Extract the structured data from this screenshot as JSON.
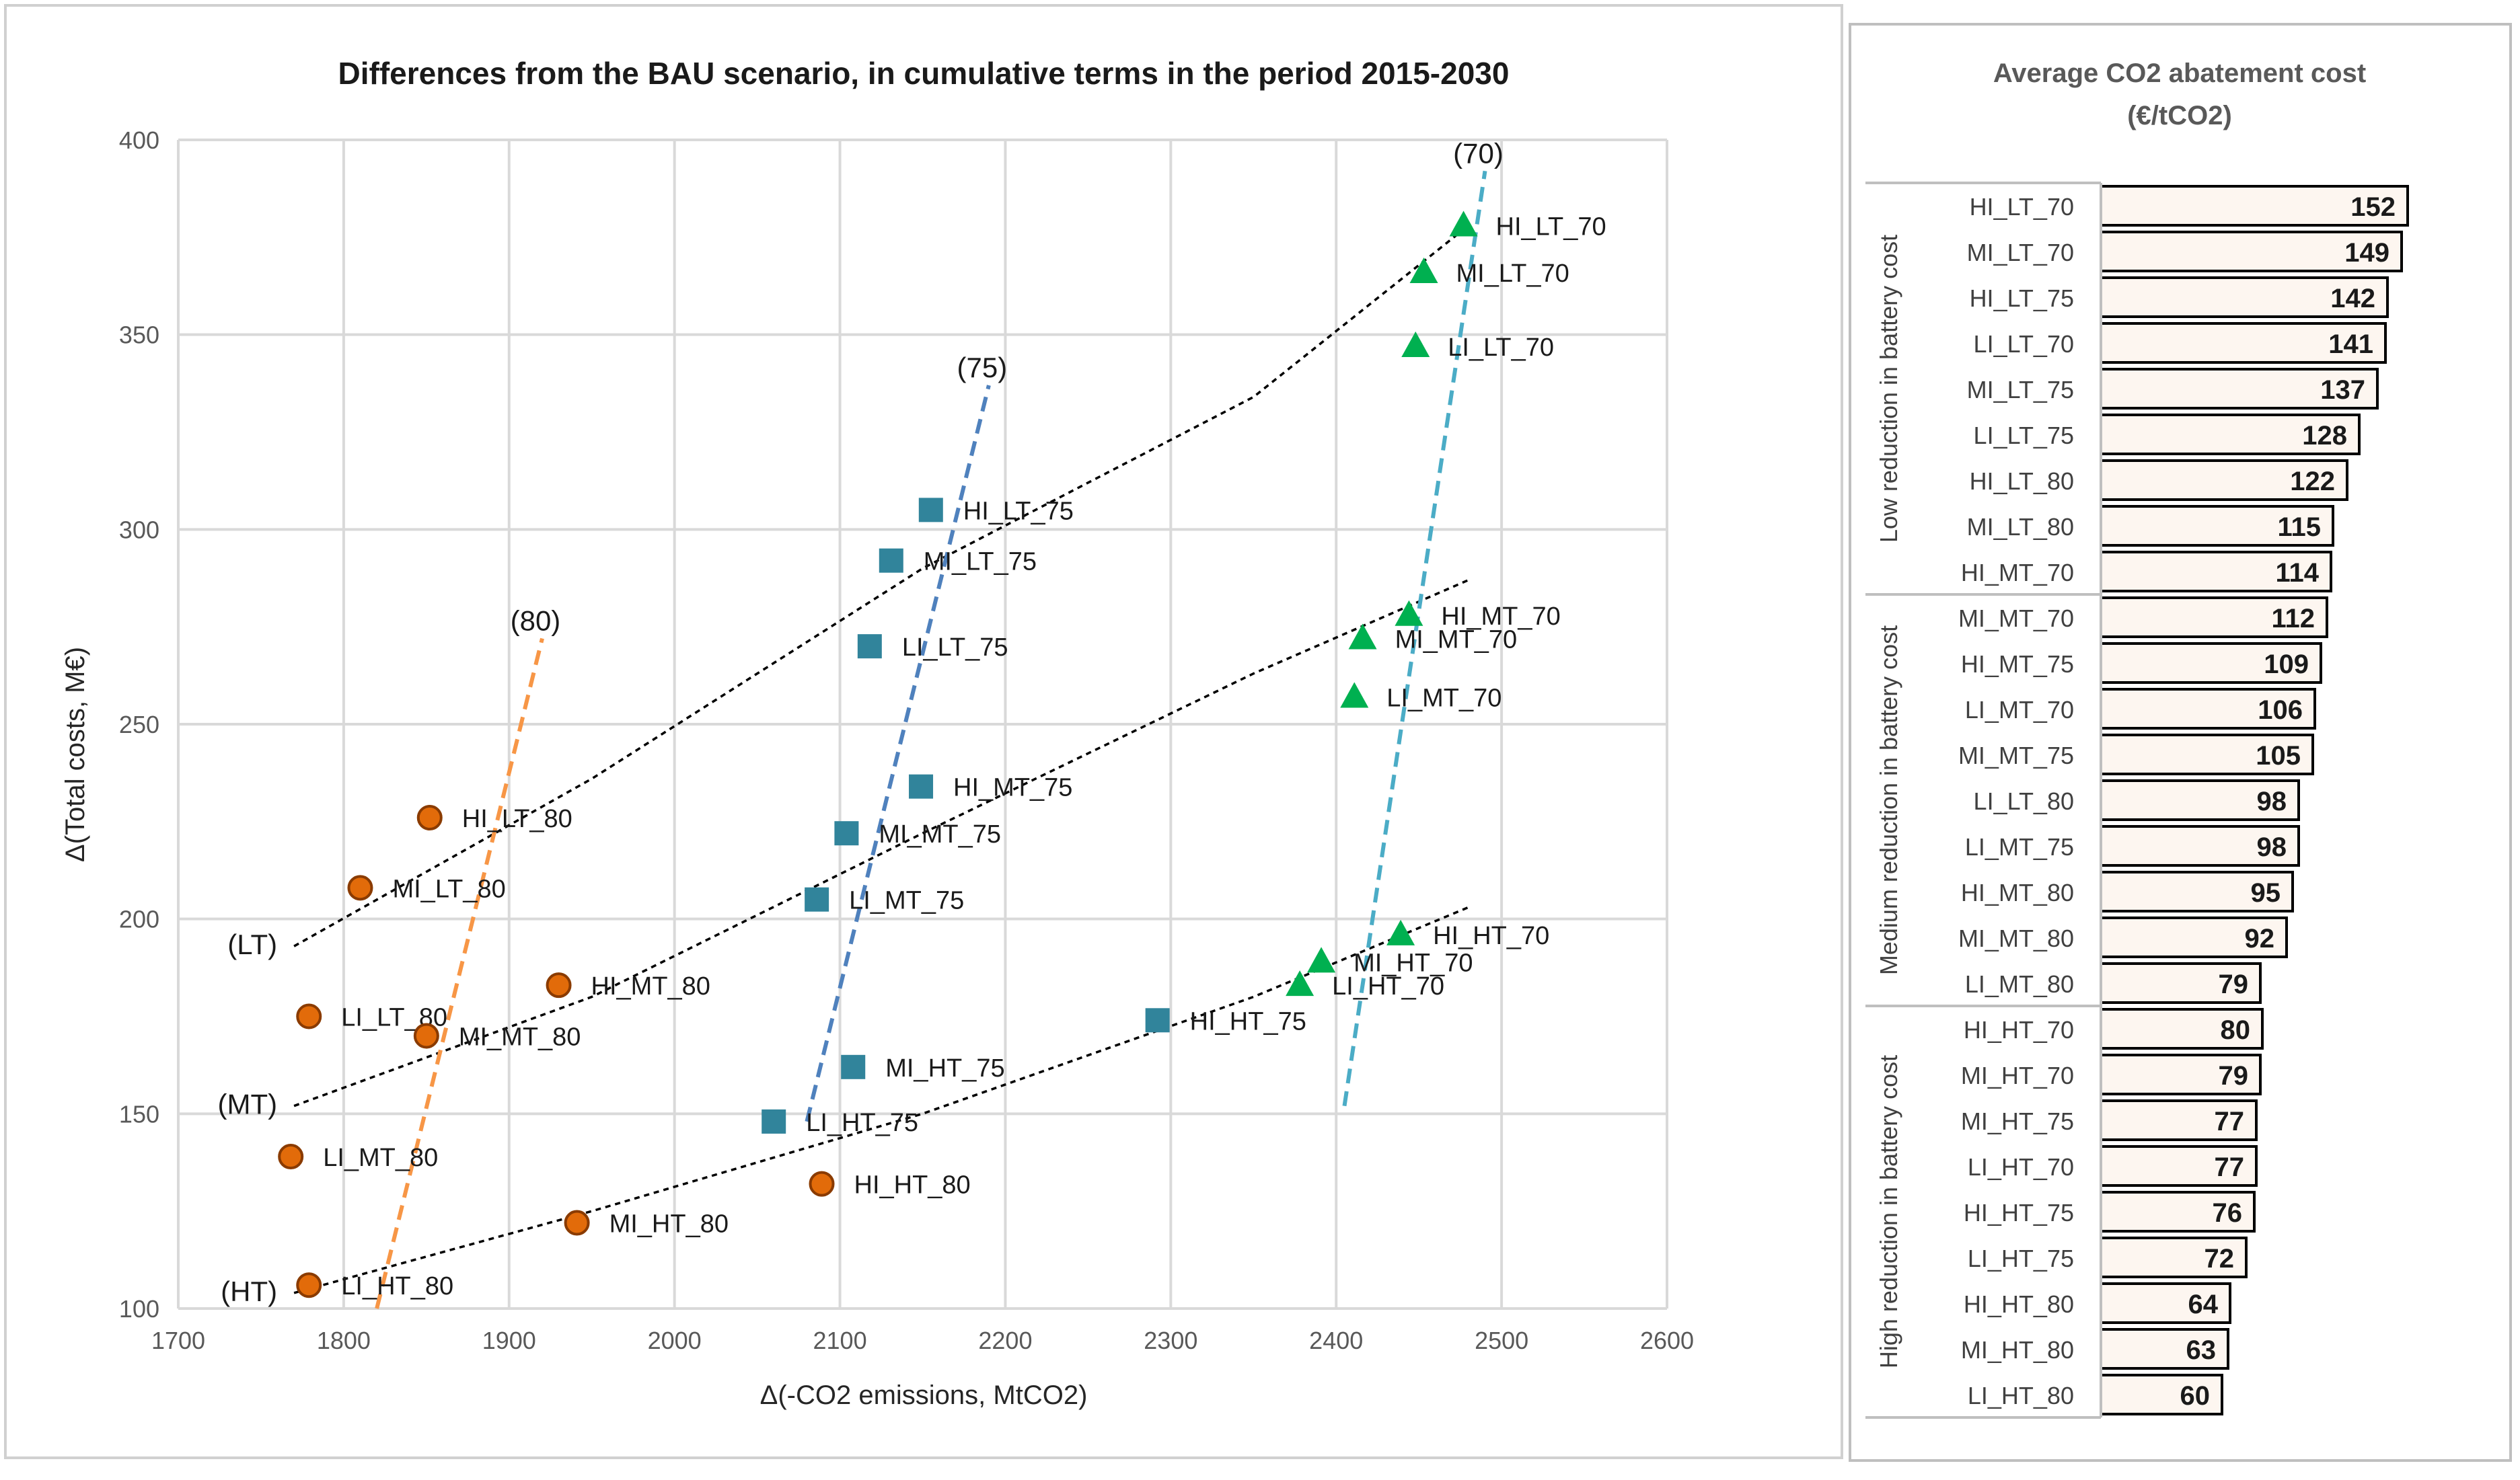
{
  "chart_data": [
    {
      "type": "scatter",
      "title": "Differences from the BAU scenario, in cumulative terms in the period 2015-2030",
      "xlabel": "Δ(-CO2 emissions, MtCO2)",
      "ylabel": "Δ(Total costs, M€)",
      "xlim": [
        1700,
        2600
      ],
      "ylim": [
        100,
        400
      ],
      "xticks": [
        1700,
        1800,
        1900,
        2000,
        2100,
        2200,
        2300,
        2400,
        2500,
        2600
      ],
      "yticks": [
        100,
        150,
        200,
        250,
        300,
        350,
        400
      ],
      "grid": true,
      "series": [
        {
          "name": "80",
          "marker": "circle",
          "color": "#E26B0A",
          "points": [
            {
              "label": "HI_LT_80",
              "x": 1852,
              "y": 226
            },
            {
              "label": "MI_LT_80",
              "x": 1810,
              "y": 208
            },
            {
              "label": "HI_MT_80",
              "x": 1930,
              "y": 183
            },
            {
              "label": "LI_LT_80",
              "x": 1779,
              "y": 175
            },
            {
              "label": "MI_MT_80",
              "x": 1850,
              "y": 170
            },
            {
              "label": "LI_MT_80",
              "x": 1768,
              "y": 139
            },
            {
              "label": "HI_HT_80",
              "x": 2089,
              "y": 132
            },
            {
              "label": "MI_HT_80",
              "x": 1941,
              "y": 122
            },
            {
              "label": "LI_HT_80",
              "x": 1779,
              "y": 106
            }
          ]
        },
        {
          "name": "75",
          "marker": "square",
          "color": "#31849B",
          "points": [
            {
              "label": "HI_LT_75",
              "x": 2155,
              "y": 305
            },
            {
              "label": "MI_LT_75",
              "x": 2131,
              "y": 292
            },
            {
              "label": "LI_LT_75",
              "x": 2118,
              "y": 270
            },
            {
              "label": "HI_MT_75",
              "x": 2149,
              "y": 234
            },
            {
              "label": "MI_MT_75",
              "x": 2104,
              "y": 222
            },
            {
              "label": "LI_MT_75",
              "x": 2086,
              "y": 205
            },
            {
              "label": "HI_HT_75",
              "x": 2292,
              "y": 174
            },
            {
              "label": "MI_HT_75",
              "x": 2108,
              "y": 162
            },
            {
              "label": "LI_HT_75",
              "x": 2060,
              "y": 148
            }
          ]
        },
        {
          "name": "70",
          "marker": "triangle",
          "color": "#00B050",
          "points": [
            {
              "label": "HI_LT_70",
              "x": 2477,
              "y": 378
            },
            {
              "label": "MI_LT_70",
              "x": 2453,
              "y": 366
            },
            {
              "label": "LI_LT_70",
              "x": 2448,
              "y": 347
            },
            {
              "label": "HI_MT_70",
              "x": 2444,
              "y": 278
            },
            {
              "label": "MI_MT_70",
              "x": 2416,
              "y": 272
            },
            {
              "label": "LI_MT_70",
              "x": 2411,
              "y": 257
            },
            {
              "label": "HI_HT_70",
              "x": 2439,
              "y": 196
            },
            {
              "label": "MI_HT_70",
              "x": 2391,
              "y": 189
            },
            {
              "label": "LI_HT_70",
              "x": 2378,
              "y": 183
            }
          ]
        }
      ],
      "trendlines": [
        {
          "name": "LT",
          "label": "(LT)",
          "style": "dotted",
          "color": "#000000",
          "points": [
            [
              1770,
              193
            ],
            [
              1950,
              236
            ],
            [
              2150,
              290
            ],
            [
              2350,
              334
            ],
            [
              2480,
              378
            ]
          ]
        },
        {
          "name": "MT",
          "label": "(MT)",
          "style": "dotted",
          "color": "#000000",
          "points": [
            [
              1770,
              152
            ],
            [
              1950,
              180
            ],
            [
              2150,
              222
            ],
            [
              2350,
              263
            ],
            [
              2480,
              287
            ]
          ]
        },
        {
          "name": "HT",
          "label": "(HT)",
          "style": "dotted",
          "color": "#000000",
          "points": [
            [
              1770,
              104
            ],
            [
              1950,
              125
            ],
            [
              2150,
              150
            ],
            [
              2350,
              180
            ],
            [
              2480,
              203
            ]
          ]
        },
        {
          "name": "80",
          "label": "(80)",
          "style": "dashed",
          "color": "#F79646",
          "points": [
            [
              1820,
              100
            ],
            [
              1920,
              272
            ]
          ]
        },
        {
          "name": "75",
          "label": "(75)",
          "style": "dashed",
          "color": "#4F81BD",
          "points": [
            [
              2080,
              148
            ],
            [
              2190,
              337
            ]
          ]
        },
        {
          "name": "70",
          "label": "(70)",
          "style": "dashed",
          "color": "#4BACC6",
          "points": [
            [
              2405,
              152
            ],
            [
              2490,
              392
            ]
          ]
        }
      ]
    },
    {
      "type": "bar",
      "orientation": "horizontal",
      "title": "Average CO2 abatement cost (€/tCO2)",
      "title_lines": [
        "Average CO2 abatement cost",
        "(€/tCO2)"
      ],
      "xlim": [
        0,
        160
      ],
      "bar_color": "#FDF6F0",
      "groups": [
        {
          "name": "Low reduction in battery cost",
          "start": 0,
          "count": 9
        },
        {
          "name": "Medium reduction in battery cost",
          "start": 9,
          "count": 9
        },
        {
          "name": "High reduction in battery cost",
          "start": 18,
          "count": 9
        }
      ],
      "categories": [
        "HI_LT_70",
        "MI_LT_70",
        "HI_LT_75",
        "LI_LT_70",
        "MI_LT_75",
        "LI_LT_75",
        "HI_LT_80",
        "MI_LT_80",
        "HI_MT_70",
        "MI_MT_70",
        "HI_MT_75",
        "LI_MT_70",
        "MI_MT_75",
        "LI_LT_80",
        "LI_MT_75",
        "HI_MT_80",
        "MI_MT_80",
        "LI_MT_80",
        "HI_HT_70",
        "MI_HT_70",
        "MI_HT_75",
        "LI_HT_70",
        "HI_HT_75",
        "LI_HT_75",
        "HI_HT_80",
        "MI_HT_80",
        "LI_HT_80"
      ],
      "values": [
        152,
        149,
        142,
        141,
        137,
        128,
        122,
        115,
        114,
        112,
        109,
        106,
        105,
        98,
        98,
        95,
        92,
        79,
        80,
        79,
        77,
        77,
        76,
        72,
        64,
        63,
        60
      ]
    }
  ]
}
